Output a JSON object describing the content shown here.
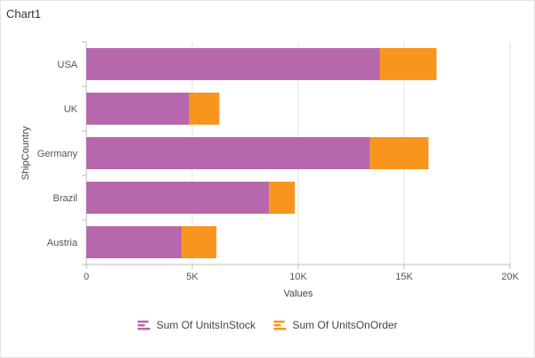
{
  "widget": {
    "title": "Chart1"
  },
  "chart_data": {
    "type": "bar",
    "orientation": "horizontal",
    "stacked": true,
    "categories": [
      "USA",
      "UK",
      "Germany",
      "Brazil",
      "Austria"
    ],
    "series": [
      {
        "name": "Sum Of UnitsInStock",
        "values": [
          13860,
          4860,
          13390,
          8620,
          4500
        ],
        "color": "#b767ac"
      },
      {
        "name": "Sum Of UnitsOnOrder",
        "values": [
          2670,
          1420,
          2760,
          1220,
          1640
        ],
        "color": "#f7951e"
      }
    ],
    "xlabel": "Values",
    "ylabel": "ShipCountry",
    "xlim": [
      0,
      20000
    ],
    "x_ticks": [
      0,
      5000,
      10000,
      15000,
      20000
    ],
    "x_tick_labels": [
      "0",
      "5K",
      "10K",
      "15K",
      "20K"
    ],
    "grid": true,
    "legend_position": "bottom"
  }
}
